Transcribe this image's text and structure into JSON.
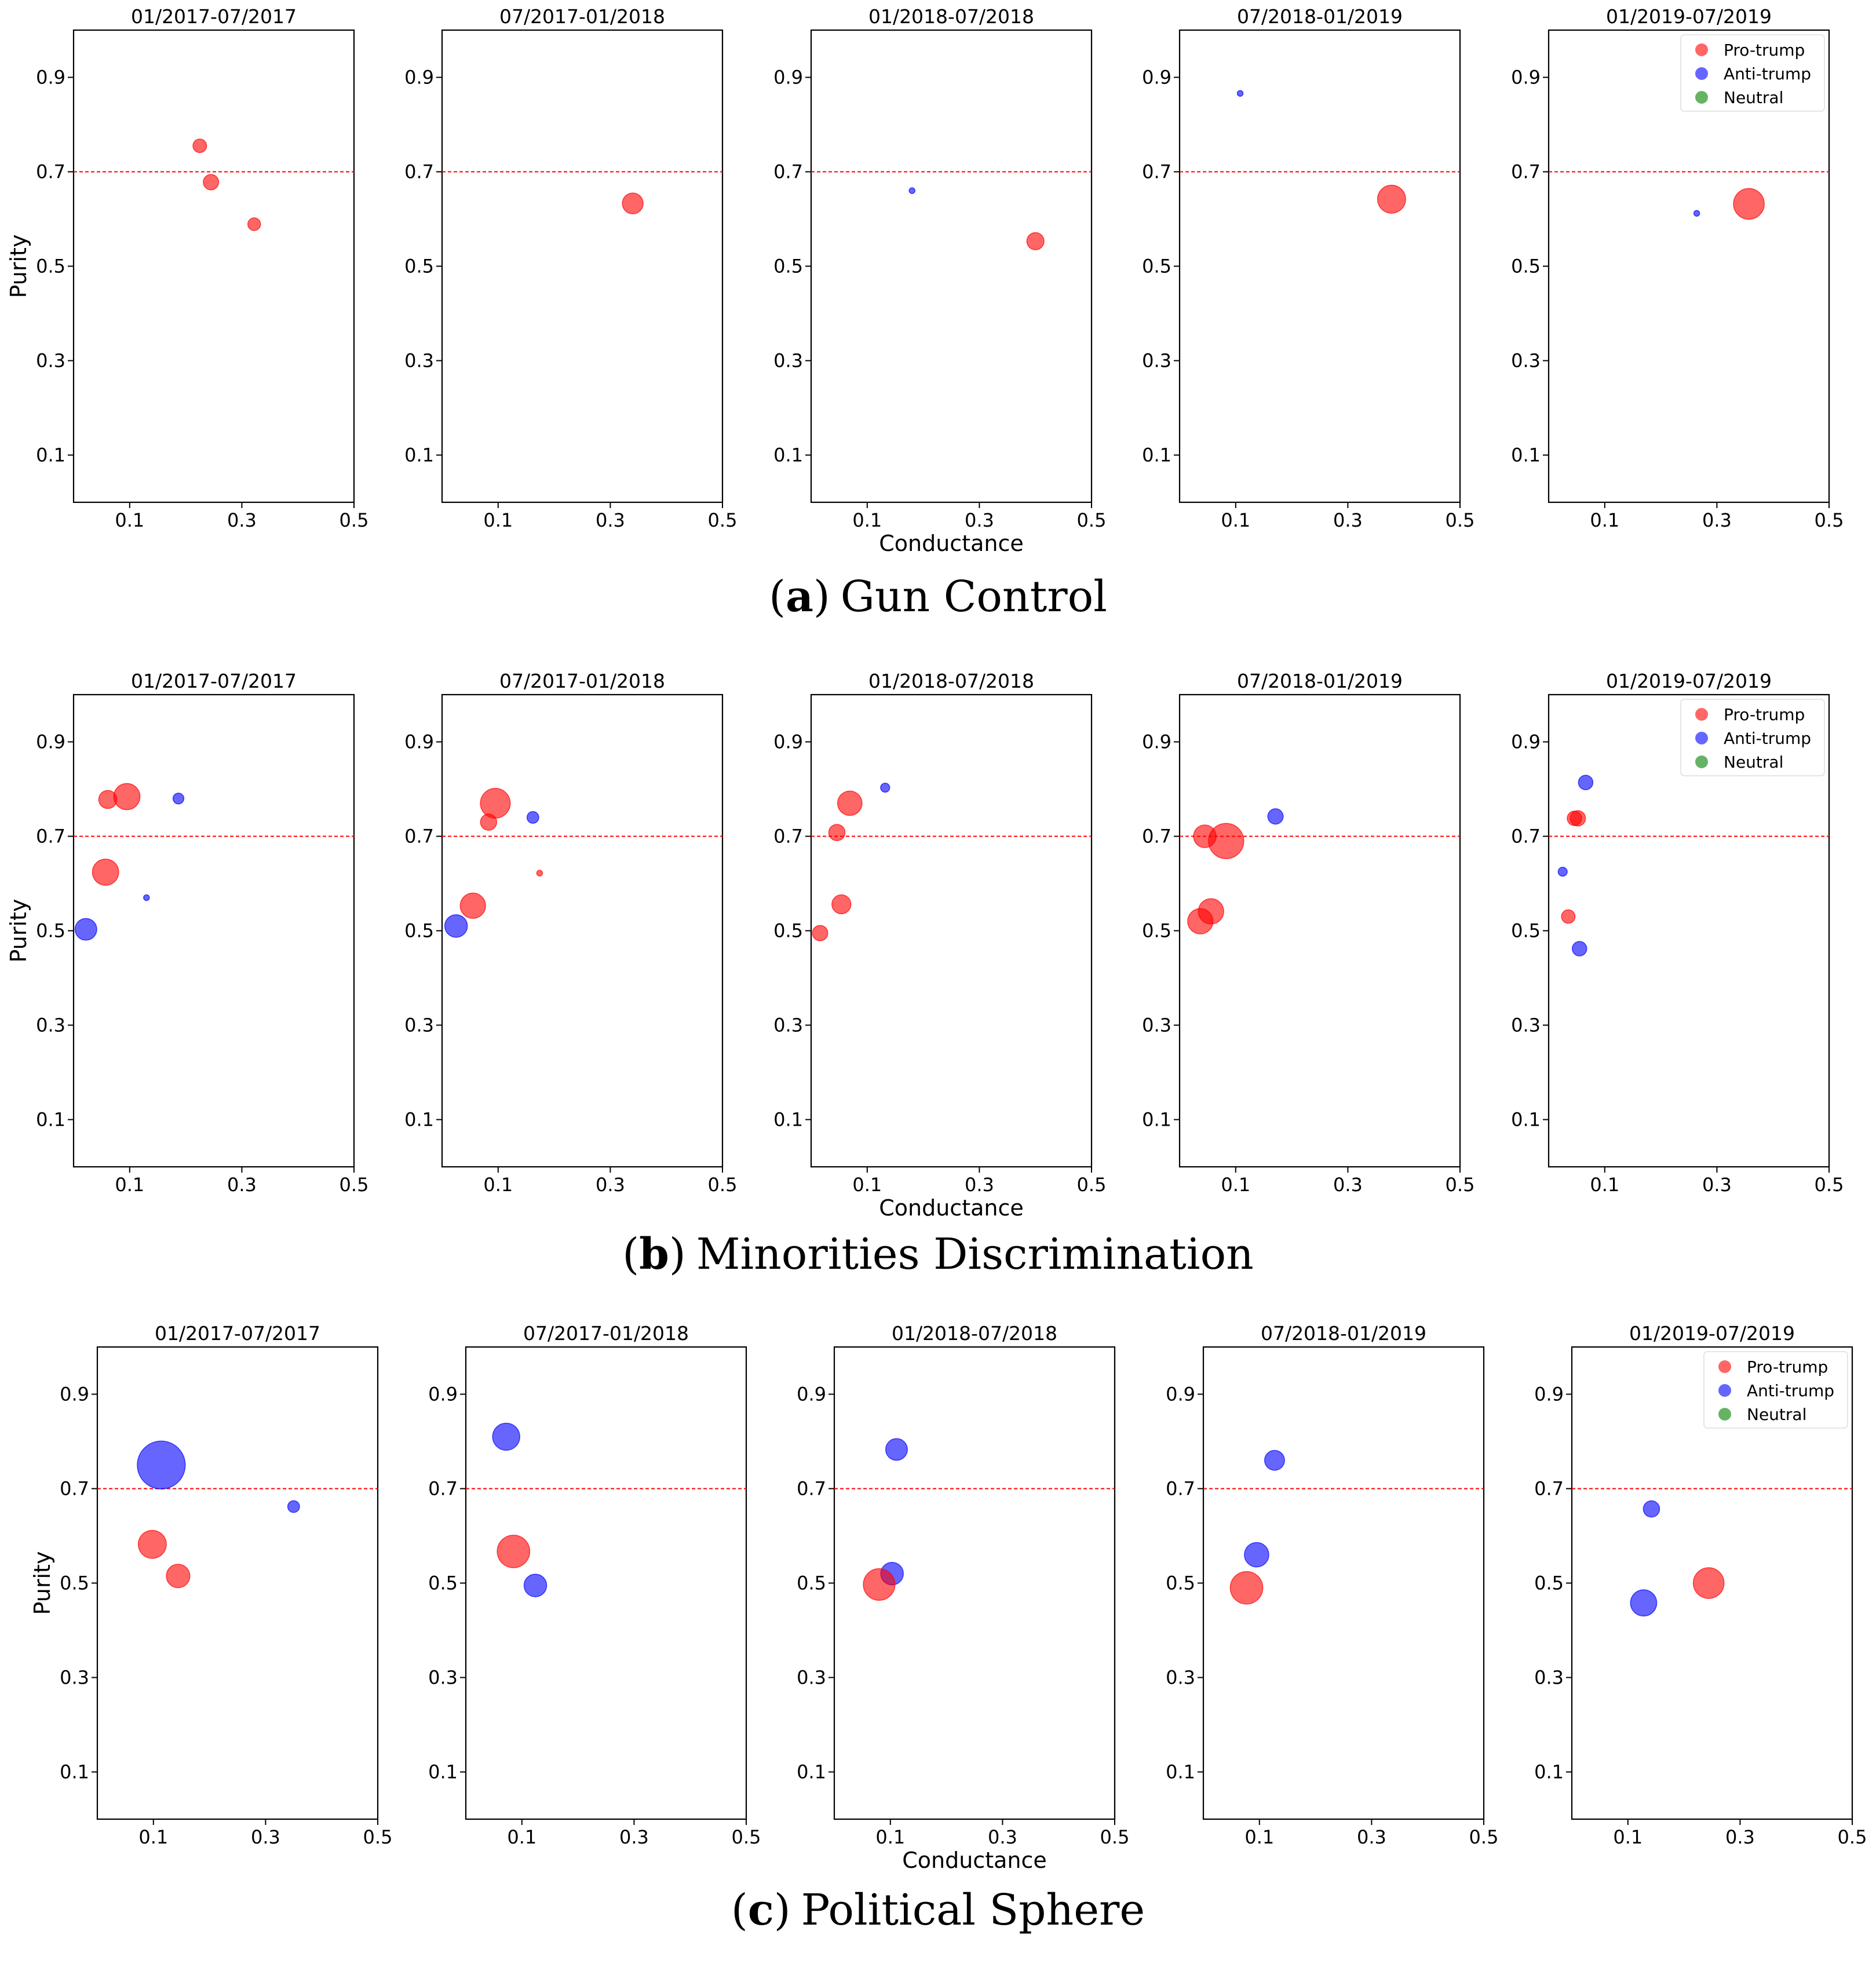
{
  "chart_data": [
    {
      "type": "scatter",
      "caption_letter": "a",
      "caption_text": "Gun Control",
      "caption_open": "(",
      "caption_close": ")",
      "xlabel": "Conductance",
      "ylabel": "Purity",
      "xlim": [
        0,
        0.5
      ],
      "ylim": [
        0,
        1
      ],
      "xticks": [
        "0.1",
        "0.3",
        "0.5"
      ],
      "yticks": [
        "0.1",
        "0.3",
        "0.5",
        "0.7",
        "0.9"
      ],
      "threshold": 0.7,
      "legend": [
        "Pro-trump",
        "Anti-trump",
        "Neutral"
      ],
      "panels": [
        {
          "title": "01/2017-07/2017",
          "points": [
            {
              "group": "Pro-trump",
              "x": 0.225,
              "y": 0.755,
              "size": 0.3
            },
            {
              "group": "Pro-trump",
              "x": 0.245,
              "y": 0.678,
              "size": 0.34
            },
            {
              "group": "Pro-trump",
              "x": 0.322,
              "y": 0.589,
              "size": 0.28
            }
          ]
        },
        {
          "title": "07/2017-01/2018",
          "points": [
            {
              "group": "Pro-trump",
              "x": 0.34,
              "y": 0.633,
              "size": 0.46
            }
          ]
        },
        {
          "title": "01/2018-07/2018",
          "points": [
            {
              "group": "Anti-trump",
              "x": 0.18,
              "y": 0.66,
              "size": 0.06
            },
            {
              "group": "Pro-trump",
              "x": 0.4,
              "y": 0.553,
              "size": 0.38
            }
          ]
        },
        {
          "title": "07/2018-01/2019",
          "points": [
            {
              "group": "Anti-trump",
              "x": 0.108,
              "y": 0.866,
              "size": 0.06
            },
            {
              "group": "Pro-trump",
              "x": 0.378,
              "y": 0.642,
              "size": 0.62
            }
          ]
        },
        {
          "title": "01/2019-07/2019",
          "points": [
            {
              "group": "Anti-trump",
              "x": 0.264,
              "y": 0.612,
              "size": 0.12
            },
            {
              "group": "Pro-trump",
              "x": 0.357,
              "y": 0.632,
              "size": 0.68
            }
          ]
        }
      ]
    },
    {
      "type": "scatter",
      "caption_letter": "b",
      "caption_text": "Minorities Discrimination",
      "caption_open": "(",
      "caption_close": ")",
      "xlabel": "Conductance",
      "ylabel": "Purity",
      "xlim": [
        0,
        0.5
      ],
      "ylim": [
        0,
        1
      ],
      "xticks": [
        "0.1",
        "0.3",
        "0.5"
      ],
      "yticks": [
        "0.1",
        "0.3",
        "0.5",
        "0.7",
        "0.9"
      ],
      "threshold": 0.7,
      "legend": [
        "Pro-trump",
        "Anti-trump",
        "Neutral"
      ],
      "panels": [
        {
          "title": "01/2017-07/2017",
          "points": [
            {
              "group": "Anti-trump",
              "x": 0.187,
              "y": 0.78,
              "size": 0.24
            },
            {
              "group": "Anti-trump",
              "x": 0.13,
              "y": 0.57,
              "size": 0.08
            },
            {
              "group": "Anti-trump",
              "x": 0.022,
              "y": 0.503,
              "size": 0.48
            },
            {
              "group": "Pro-trump",
              "x": 0.061,
              "y": 0.778,
              "size": 0.4
            },
            {
              "group": "Pro-trump",
              "x": 0.095,
              "y": 0.784,
              "size": 0.58
            },
            {
              "group": "Pro-trump",
              "x": 0.057,
              "y": 0.624,
              "size": 0.58
            }
          ]
        },
        {
          "title": "07/2017-01/2018",
          "points": [
            {
              "group": "Anti-trump",
              "x": 0.162,
              "y": 0.74,
              "size": 0.26
            },
            {
              "group": "Anti-trump",
              "x": 0.025,
              "y": 0.51,
              "size": 0.5
            },
            {
              "group": "Pro-trump",
              "x": 0.174,
              "y": 0.622,
              "size": 0.08
            },
            {
              "group": "Pro-trump",
              "x": 0.095,
              "y": 0.77,
              "size": 0.66
            },
            {
              "group": "Pro-trump",
              "x": 0.083,
              "y": 0.73,
              "size": 0.36
            },
            {
              "group": "Pro-trump",
              "x": 0.055,
              "y": 0.553,
              "size": 0.56
            }
          ]
        },
        {
          "title": "01/2018-07/2018",
          "points": [
            {
              "group": "Anti-trump",
              "x": 0.132,
              "y": 0.803,
              "size": 0.2
            },
            {
              "group": "Pro-trump",
              "x": 0.069,
              "y": 0.77,
              "size": 0.54
            },
            {
              "group": "Pro-trump",
              "x": 0.046,
              "y": 0.708,
              "size": 0.36
            },
            {
              "group": "Pro-trump",
              "x": 0.054,
              "y": 0.556,
              "size": 0.42
            },
            {
              "group": "Pro-trump",
              "x": 0.016,
              "y": 0.495,
              "size": 0.34
            }
          ]
        },
        {
          "title": "07/2018-01/2019",
          "points": [
            {
              "group": "Anti-trump",
              "x": 0.171,
              "y": 0.742,
              "size": 0.34
            },
            {
              "group": "Pro-trump",
              "x": 0.045,
              "y": 0.7,
              "size": 0.5
            },
            {
              "group": "Pro-trump",
              "x": 0.083,
              "y": 0.69,
              "size": 0.78
            },
            {
              "group": "Pro-trump",
              "x": 0.056,
              "y": 0.541,
              "size": 0.56
            },
            {
              "group": "Pro-trump",
              "x": 0.037,
              "y": 0.52,
              "size": 0.56
            }
          ]
        },
        {
          "title": "01/2019-07/2019",
          "points": [
            {
              "group": "Anti-trump",
              "x": 0.066,
              "y": 0.814,
              "size": 0.32
            },
            {
              "group": "Anti-trump",
              "x": 0.025,
              "y": 0.625,
              "size": 0.2
            },
            {
              "group": "Anti-trump",
              "x": 0.055,
              "y": 0.462,
              "size": 0.32
            },
            {
              "group": "Pro-trump",
              "x": 0.046,
              "y": 0.738,
              "size": 0.32
            },
            {
              "group": "Pro-trump",
              "x": 0.052,
              "y": 0.738,
              "size": 0.34
            },
            {
              "group": "Pro-trump",
              "x": 0.035,
              "y": 0.53,
              "size": 0.3
            }
          ]
        }
      ]
    },
    {
      "type": "scatter",
      "caption_letter": "c",
      "caption_text": "Political Sphere",
      "caption_open": "(",
      "caption_close": ")",
      "xlabel": "Conductance",
      "ylabel": "Purity",
      "xlim": [
        0,
        0.5
      ],
      "ylim": [
        0,
        1
      ],
      "xticks": [
        "0.1",
        "0.3",
        "0.5"
      ],
      "yticks": [
        "0.1",
        "0.3",
        "0.5",
        "0.7",
        "0.9"
      ],
      "threshold": 0.7,
      "legend": [
        "Pro-trump",
        "Anti-trump",
        "Neutral"
      ],
      "panels": [
        {
          "title": "01/2017-07/2017",
          "points": [
            {
              "group": "Anti-trump",
              "x": 0.114,
              "y": 0.75,
              "size": 1.06
            },
            {
              "group": "Anti-trump",
              "x": 0.35,
              "y": 0.662,
              "size": 0.26
            },
            {
              "group": "Pro-trump",
              "x": 0.098,
              "y": 0.582,
              "size": 0.62
            },
            {
              "group": "Pro-trump",
              "x": 0.144,
              "y": 0.515,
              "size": 0.52
            }
          ]
        },
        {
          "title": "07/2017-01/2018",
          "points": [
            {
              "group": "Anti-trump",
              "x": 0.072,
              "y": 0.81,
              "size": 0.6
            },
            {
              "group": "Anti-trump",
              "x": 0.124,
              "y": 0.495,
              "size": 0.5
            },
            {
              "group": "Pro-trump",
              "x": 0.085,
              "y": 0.567,
              "size": 0.72
            }
          ]
        },
        {
          "title": "01/2018-07/2018",
          "points": [
            {
              "group": "Anti-trump",
              "x": 0.111,
              "y": 0.783,
              "size": 0.48
            },
            {
              "group": "Anti-trump",
              "x": 0.103,
              "y": 0.52,
              "size": 0.5
            },
            {
              "group": "Pro-trump",
              "x": 0.08,
              "y": 0.497,
              "size": 0.7
            }
          ]
        },
        {
          "title": "07/2018-01/2019",
          "points": [
            {
              "group": "Anti-trump",
              "x": 0.127,
              "y": 0.76,
              "size": 0.44
            },
            {
              "group": "Anti-trump",
              "x": 0.095,
              "y": 0.56,
              "size": 0.54
            },
            {
              "group": "Pro-trump",
              "x": 0.077,
              "y": 0.49,
              "size": 0.72
            }
          ]
        },
        {
          "title": "01/2019-07/2019",
          "points": [
            {
              "group": "Anti-trump",
              "x": 0.142,
              "y": 0.657,
              "size": 0.36
            },
            {
              "group": "Anti-trump",
              "x": 0.128,
              "y": 0.458,
              "size": 0.58
            },
            {
              "group": "Pro-trump",
              "x": 0.244,
              "y": 0.5,
              "size": 0.68
            }
          ]
        }
      ]
    }
  ],
  "colors": {
    "Pro-trump": "#ff0000",
    "Anti-trump": "#0000ff",
    "Neutral": "#008000",
    "threshold": "#ff0000",
    "axes": "#000000"
  }
}
